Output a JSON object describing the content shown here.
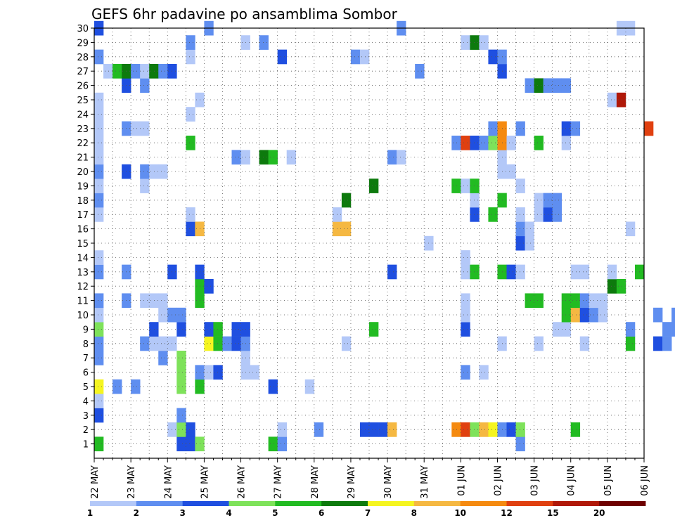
{
  "chart_data": {
    "type": "heatmap",
    "title": "GEFS 6hr padavine po ansamblima Sombor",
    "y_ticks": [
      "1",
      "2",
      "3",
      "4",
      "5",
      "6",
      "7",
      "8",
      "9",
      "10",
      "11",
      "12",
      "13",
      "14",
      "15",
      "16",
      "17",
      "18",
      "19",
      "20",
      "21",
      "22",
      "23",
      "24",
      "25",
      "26",
      "27",
      "28",
      "29",
      "30"
    ],
    "x_ticks": [
      "22 MAY",
      "23 MAY",
      "24 MAY",
      "25 MAY",
      "26 MAY",
      "27 MAY",
      "28 MAY",
      "29 MAY",
      "30 MAY",
      "31 MAY",
      "01 JUN",
      "02 JUN",
      "03 JUN",
      "04 JUN",
      "05 JUN",
      "06 JUN"
    ],
    "x_range": [
      "22 MAY",
      "06 JUN"
    ],
    "y_range": [
      0,
      30
    ],
    "steps_per_day": 4,
    "grid": true,
    "legend": {
      "position": "bottom",
      "labels": [
        "1",
        "2",
        "3",
        "4",
        "5",
        "6",
        "7",
        "8",
        "10",
        "12",
        "15",
        "20"
      ],
      "colors": [
        "#b3c8f8",
        "#5f8ef0",
        "#1f4fe0",
        "#7ee25a",
        "#22bb22",
        "#0d7a0d",
        "#f5f520",
        "#f5b842",
        "#f58a10",
        "#e04010",
        "#b01808",
        "#6e0000"
      ]
    },
    "members": [
      {
        "member": 1,
        "values": [
          [
            0,
            5
          ],
          [
            9,
            3
          ],
          [
            10,
            3
          ],
          [
            11,
            4
          ],
          [
            19,
            5
          ],
          [
            20,
            2
          ],
          [
            46,
            2
          ],
          [
            65,
            1
          ],
          [
            66,
            2
          ],
          [
            75,
            3
          ],
          [
            81,
            2
          ],
          [
            86,
            2
          ],
          [
            87,
            5
          ],
          [
            88,
            6
          ],
          [
            89,
            1
          ]
        ]
      },
      {
        "member": 2,
        "values": [
          [
            8,
            1
          ],
          [
            9,
            4
          ],
          [
            10,
            3
          ],
          [
            20,
            1
          ],
          [
            24,
            2
          ],
          [
            29,
            3
          ],
          [
            30,
            3
          ],
          [
            31,
            3
          ],
          [
            32,
            8
          ],
          [
            39,
            10
          ],
          [
            40,
            14
          ],
          [
            41,
            4
          ],
          [
            42,
            8
          ],
          [
            43,
            7
          ],
          [
            44,
            2
          ],
          [
            45,
            3
          ],
          [
            46,
            4
          ],
          [
            52,
            5
          ],
          [
            64,
            1
          ],
          [
            65,
            1
          ],
          [
            66,
            2
          ],
          [
            81,
            1
          ],
          [
            82,
            1
          ],
          [
            83,
            1
          ],
          [
            84,
            3
          ]
        ]
      },
      {
        "member": 3,
        "values": [
          [
            0,
            3
          ],
          [
            9,
            2
          ],
          [
            74,
            5
          ],
          [
            75,
            2
          ],
          [
            83,
            1
          ]
        ]
      },
      {
        "member": 4,
        "values": [
          [
            0,
            1
          ]
        ]
      },
      {
        "member": 5,
        "values": [
          [
            0,
            7
          ],
          [
            2,
            2
          ],
          [
            4,
            2
          ],
          [
            9,
            4
          ],
          [
            11,
            5
          ],
          [
            19,
            3
          ],
          [
            23,
            1
          ],
          [
            76,
            1
          ],
          [
            77,
            5
          ]
        ]
      },
      {
        "member": 6,
        "values": [
          [
            9,
            4
          ],
          [
            11,
            2
          ],
          [
            12,
            1
          ],
          [
            13,
            3
          ],
          [
            16,
            1
          ],
          [
            17,
            1
          ],
          [
            40,
            2
          ],
          [
            42,
            1
          ],
          [
            77,
            2
          ],
          [
            84,
            6
          ]
        ]
      },
      {
        "member": 7,
        "values": [
          [
            0,
            2
          ],
          [
            7,
            2
          ],
          [
            9,
            4
          ],
          [
            16,
            1
          ]
        ]
      },
      {
        "member": 8,
        "values": [
          [
            0,
            2
          ],
          [
            5,
            2
          ],
          [
            6,
            1
          ],
          [
            7,
            1
          ],
          [
            8,
            1
          ],
          [
            12,
            7
          ],
          [
            13,
            5
          ],
          [
            14,
            2
          ],
          [
            15,
            3
          ],
          [
            16,
            2
          ],
          [
            27,
            1
          ],
          [
            44,
            1
          ],
          [
            48,
            1
          ],
          [
            53,
            1
          ],
          [
            58,
            5
          ],
          [
            61,
            3
          ],
          [
            62,
            2
          ],
          [
            71,
            3
          ],
          [
            72,
            4
          ],
          [
            74,
            5
          ],
          [
            75,
            1
          ],
          [
            79,
            5
          ],
          [
            80,
            1
          ]
        ]
      },
      {
        "member": 9,
        "values": [
          [
            0,
            4
          ],
          [
            6,
            3
          ],
          [
            9,
            3
          ],
          [
            12,
            3
          ],
          [
            13,
            5
          ],
          [
            15,
            3
          ],
          [
            16,
            3
          ],
          [
            30,
            5
          ],
          [
            40,
            3
          ],
          [
            50,
            1
          ],
          [
            51,
            1
          ],
          [
            58,
            2
          ],
          [
            62,
            2
          ],
          [
            63,
            2
          ],
          [
            65,
            4
          ],
          [
            66,
            1
          ]
        ]
      },
      {
        "member": 7,
        "values": []
      },
      {
        "member": 10,
        "values": [
          [
            0,
            1
          ],
          [
            7,
            1
          ],
          [
            8,
            2
          ],
          [
            9,
            2
          ],
          [
            40,
            1
          ],
          [
            51,
            5
          ],
          [
            52,
            9
          ],
          [
            53,
            3
          ],
          [
            54,
            2
          ],
          [
            55,
            1
          ],
          [
            61,
            2
          ],
          [
            63,
            2
          ],
          [
            64,
            3
          ],
          [
            65,
            1
          ],
          [
            66,
            1
          ],
          [
            80,
            1
          ],
          [
            82,
            1
          ],
          [
            84,
            2
          ]
        ]
      },
      {
        "member": 11,
        "values": [
          [
            0,
            2
          ],
          [
            3,
            2
          ],
          [
            5,
            1
          ],
          [
            6,
            1
          ],
          [
            7,
            1
          ],
          [
            11,
            5
          ],
          [
            40,
            1
          ],
          [
            47,
            5
          ],
          [
            48,
            5
          ],
          [
            51,
            5
          ],
          [
            52,
            5
          ],
          [
            53,
            2
          ],
          [
            54,
            1
          ],
          [
            55,
            1
          ]
        ]
      },
      {
        "member": 12,
        "values": [
          [
            11,
            5
          ],
          [
            12,
            3
          ],
          [
            56,
            6
          ],
          [
            57,
            5
          ]
        ]
      },
      {
        "member": 13,
        "values": [
          [
            0,
            2
          ],
          [
            3,
            2
          ],
          [
            8,
            3
          ],
          [
            11,
            3
          ],
          [
            32,
            3
          ],
          [
            40,
            1
          ],
          [
            41,
            5
          ],
          [
            44,
            5
          ],
          [
            45,
            3
          ],
          [
            46,
            1
          ],
          [
            52,
            1
          ],
          [
            53,
            1
          ],
          [
            56,
            1
          ],
          [
            59,
            5
          ]
        ]
      },
      {
        "member": 14,
        "values": [
          [
            0,
            1
          ],
          [
            40,
            1
          ],
          [
            40,
            1
          ]
        ]
      },
      {
        "member": 15,
        "values": [
          [
            36,
            1
          ],
          [
            46,
            3
          ],
          [
            47,
            1
          ]
        ]
      },
      {
        "member": 16,
        "values": [
          [
            10,
            3
          ],
          [
            11,
            8
          ],
          [
            26,
            8
          ],
          [
            27,
            9
          ],
          [
            46,
            2
          ],
          [
            47,
            1
          ],
          [
            58,
            1
          ]
        ]
      },
      {
        "member": 17,
        "values": [
          [
            0,
            1
          ],
          [
            10,
            1
          ],
          [
            26,
            1
          ],
          [
            41,
            3
          ],
          [
            43,
            5
          ],
          [
            46,
            1
          ],
          [
            48,
            1
          ],
          [
            49,
            3
          ],
          [
            50,
            2
          ]
        ]
      },
      {
        "member": 18,
        "values": [
          [
            0,
            2
          ],
          [
            27,
            6
          ],
          [
            41,
            1
          ],
          [
            44,
            5
          ],
          [
            48,
            1
          ],
          [
            49,
            2
          ],
          [
            50,
            2
          ]
        ]
      },
      {
        "member": 19,
        "values": [
          [
            0,
            1
          ],
          [
            5,
            1
          ],
          [
            30,
            6
          ],
          [
            39,
            5
          ],
          [
            40,
            1
          ],
          [
            41,
            5
          ],
          [
            46,
            1
          ]
        ]
      },
      {
        "member": 20,
        "values": [
          [
            0,
            2
          ],
          [
            3,
            3
          ],
          [
            5,
            2
          ],
          [
            6,
            1
          ],
          [
            7,
            1
          ],
          [
            44,
            1
          ],
          [
            45,
            1
          ]
        ]
      },
      {
        "member": 21,
        "values": [
          [
            0,
            1
          ],
          [
            15,
            2
          ],
          [
            16,
            1
          ],
          [
            18,
            6
          ],
          [
            19,
            5
          ],
          [
            21,
            1
          ],
          [
            32,
            2
          ],
          [
            33,
            1
          ],
          [
            44,
            1
          ]
        ]
      },
      {
        "member": 22,
        "values": [
          [
            0,
            1
          ],
          [
            10,
            5
          ],
          [
            39,
            2
          ],
          [
            40,
            12
          ],
          [
            41,
            3
          ],
          [
            42,
            2
          ],
          [
            43,
            4
          ],
          [
            44,
            11
          ],
          [
            45,
            1
          ],
          [
            48,
            5
          ],
          [
            51,
            1
          ]
        ]
      },
      {
        "member": 23,
        "values": [
          [
            0,
            1
          ],
          [
            3,
            2
          ],
          [
            4,
            1
          ],
          [
            5,
            1
          ],
          [
            43,
            2
          ],
          [
            44,
            10
          ],
          [
            46,
            2
          ],
          [
            51,
            3
          ],
          [
            52,
            2
          ],
          [
            60,
            13
          ]
        ]
      },
      {
        "member": 24,
        "values": [
          [
            0,
            1
          ],
          [
            10,
            1
          ]
        ]
      },
      {
        "member": 25,
        "values": [
          [
            0,
            1
          ],
          [
            11,
            1
          ],
          [
            56,
            1
          ],
          [
            57,
            15
          ]
        ]
      },
      {
        "member": 26,
        "values": [
          [
            3,
            3
          ],
          [
            5,
            2
          ],
          [
            47,
            2
          ],
          [
            48,
            6
          ],
          [
            49,
            2
          ],
          [
            50,
            2
          ],
          [
            51,
            2
          ]
        ]
      },
      {
        "member": 27,
        "values": [
          [
            1,
            1
          ],
          [
            2,
            5
          ],
          [
            3,
            6
          ],
          [
            4,
            2
          ],
          [
            5,
            1
          ],
          [
            6,
            6
          ],
          [
            7,
            2
          ],
          [
            8,
            3
          ],
          [
            35,
            2
          ],
          [
            44,
            3
          ]
        ]
      },
      {
        "member": 28,
        "values": [
          [
            0,
            2
          ],
          [
            10,
            1
          ],
          [
            20,
            3
          ],
          [
            28,
            2
          ],
          [
            29,
            1
          ],
          [
            43,
            3
          ],
          [
            44,
            2
          ]
        ]
      },
      {
        "member": 29,
        "values": [
          [
            10,
            2
          ],
          [
            16,
            1
          ],
          [
            18,
            2
          ],
          [
            40,
            1
          ],
          [
            41,
            6
          ],
          [
            42,
            1
          ]
        ]
      },
      {
        "member": 30,
        "values": [
          [
            0,
            3
          ],
          [
            12,
            2
          ],
          [
            33,
            2
          ],
          [
            57,
            1
          ],
          [
            58,
            1
          ]
        ]
      }
    ]
  }
}
